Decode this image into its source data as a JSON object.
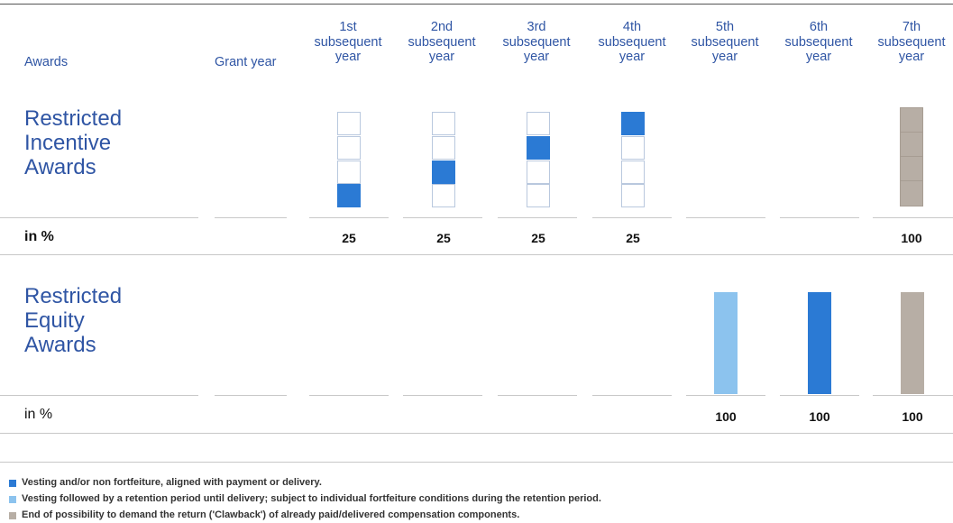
{
  "header": {
    "awards": "Awards",
    "grant_year": "Grant year",
    "years": [
      {
        "ordinal": "1st",
        "l2": "subsequent",
        "l3": "year"
      },
      {
        "ordinal": "2nd",
        "l2": "subsequent",
        "l3": "year"
      },
      {
        "ordinal": "3rd",
        "l2": "subsequent",
        "l3": "year"
      },
      {
        "ordinal": "4th",
        "l2": "subsequent",
        "l3": "year"
      },
      {
        "ordinal": "5th",
        "l2": "subsequent",
        "l3": "year"
      },
      {
        "ordinal": "6th",
        "l2": "subsequent",
        "l3": "year"
      },
      {
        "ordinal": "7th",
        "l2": "subsequent",
        "l3": "year"
      }
    ]
  },
  "ria": {
    "title_lines": [
      "Restricted",
      "Incentive",
      "Awards"
    ],
    "pct_label": "in %",
    "values": [
      "25",
      "25",
      "25",
      "25",
      "100"
    ]
  },
  "rea": {
    "title_lines": [
      "Restricted",
      "Equity",
      "Awards"
    ],
    "pct_label": "in %",
    "values": [
      "100",
      "100",
      "100"
    ]
  },
  "legend": [
    {
      "text": "Vesting and/or non fortfeiture, aligned with payment or delivery.",
      "color": "#2b7ad4"
    },
    {
      "text": "Vesting followed by a retention period until delivery; subject to individual fortfeiture conditions during the retention period.",
      "color": "#8cc3ee"
    },
    {
      "text": "End of possibility to demand the return ('Clawback') of already paid/delivered compensation components.",
      "color": "#b7aea5"
    }
  ],
  "colors": {
    "vesting": "#2b7ad4",
    "retention": "#8cc3ee",
    "clawback": "#b7aea5",
    "heading_blue": "#2f55a4"
  }
}
